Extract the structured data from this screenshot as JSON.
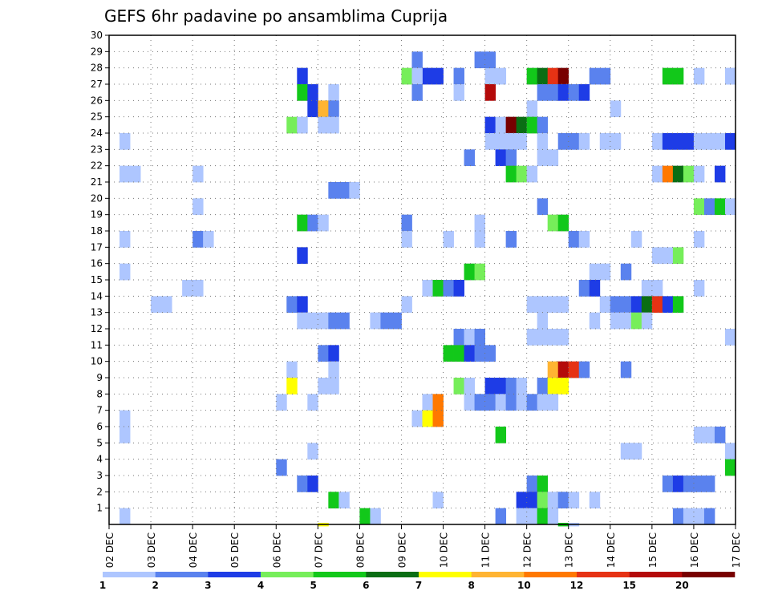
{
  "chart_data": {
    "type": "heatmap",
    "title": "GEFS 6hr padavine po ansamblima Cuprija",
    "x_tick_labels": [
      "02 DEC",
      "03 DEC",
      "04 DEC",
      "05 DEC",
      "06 DEC",
      "07 DEC",
      "08 DEC",
      "09 DEC",
      "10 DEC",
      "11 DEC",
      "12 DEC",
      "13 DEC",
      "14 DEC",
      "15 DEC",
      "16 DEC",
      "17 DEC"
    ],
    "y_tick_labels": [
      "1",
      "2",
      "3",
      "4",
      "5",
      "6",
      "7",
      "8",
      "9",
      "10",
      "11",
      "12",
      "13",
      "14",
      "15",
      "16",
      "17",
      "18",
      "19",
      "20",
      "21",
      "22",
      "23",
      "24",
      "25",
      "26",
      "27",
      "28",
      "29",
      "30"
    ],
    "grid": true,
    "x_range": [
      0,
      60
    ],
    "y_range": [
      0,
      30
    ],
    "legend_position": "bottom",
    "colorbar": {
      "labels": [
        "1",
        "2",
        "3",
        "4",
        "5",
        "6",
        "7",
        "8",
        "10",
        "12",
        "15",
        "20"
      ],
      "colors": [
        "#aec6ff",
        "#5a82ee",
        "#1e3ce6",
        "#76ee5a",
        "#12c81a",
        "#0a6e14",
        "#ffff00",
        "#ffb432",
        "#ff7800",
        "#e63214",
        "#b40a0a",
        "#780000"
      ]
    },
    "cells": [
      [
        30,
        27,
        3
      ],
      [
        31,
        27,
        3
      ],
      [
        33,
        27,
        2
      ],
      [
        36,
        27,
        1
      ],
      [
        37,
        27,
        1
      ],
      [
        59,
        27,
        1
      ],
      [
        29,
        28,
        2
      ],
      [
        35,
        28,
        2
      ],
      [
        36,
        28,
        2
      ],
      [
        18,
        27,
        3
      ],
      [
        28,
        27,
        4
      ],
      [
        29,
        27,
        1
      ],
      [
        40,
        27,
        5
      ],
      [
        41,
        27,
        6
      ],
      [
        42,
        27,
        10
      ],
      [
        43,
        27,
        12
      ],
      [
        46,
        27,
        2
      ],
      [
        47,
        27,
        2
      ],
      [
        53,
        27,
        5
      ],
      [
        54,
        27,
        5
      ],
      [
        56,
        27,
        1
      ],
      [
        59,
        27,
        1
      ],
      [
        18,
        26,
        5
      ],
      [
        19,
        26,
        3
      ],
      [
        21,
        26,
        1
      ],
      [
        29,
        26,
        2
      ],
      [
        33,
        26,
        1
      ],
      [
        36,
        26,
        11
      ],
      [
        41,
        26,
        2
      ],
      [
        42,
        26,
        2
      ],
      [
        43,
        26,
        3
      ],
      [
        44,
        26,
        2
      ],
      [
        45,
        26,
        3
      ],
      [
        19,
        25,
        3
      ],
      [
        20,
        25,
        8
      ],
      [
        21,
        25,
        2
      ],
      [
        40,
        25,
        1
      ],
      [
        48,
        25,
        1
      ],
      [
        17,
        24,
        4
      ],
      [
        18,
        24,
        1
      ],
      [
        20,
        24,
        1
      ],
      [
        21,
        24,
        1
      ],
      [
        36,
        24,
        3
      ],
      [
        37,
        24,
        1
      ],
      [
        38,
        24,
        12
      ],
      [
        39,
        24,
        6
      ],
      [
        40,
        24,
        5
      ],
      [
        41,
        24,
        2
      ],
      [
        1,
        23,
        1
      ],
      [
        36,
        23,
        1
      ],
      [
        37,
        23,
        1
      ],
      [
        38,
        23,
        1
      ],
      [
        39,
        23,
        1
      ],
      [
        41,
        23,
        1
      ],
      [
        43,
        23,
        2
      ],
      [
        44,
        23,
        2
      ],
      [
        45,
        23,
        1
      ],
      [
        47,
        23,
        1
      ],
      [
        48,
        23,
        1
      ],
      [
        52,
        23,
        1
      ],
      [
        53,
        23,
        3
      ],
      [
        54,
        23,
        3
      ],
      [
        55,
        23,
        3
      ],
      [
        56,
        23,
        1
      ],
      [
        57,
        23,
        1
      ],
      [
        58,
        23,
        1
      ],
      [
        59,
        23,
        3
      ],
      [
        34,
        22,
        2
      ],
      [
        37,
        22,
        3
      ],
      [
        38,
        22,
        2
      ],
      [
        41,
        22,
        1
      ],
      [
        42,
        22,
        1
      ],
      [
        1,
        21,
        1
      ],
      [
        2,
        21,
        1
      ],
      [
        8,
        21,
        1
      ],
      [
        38,
        21,
        5
      ],
      [
        39,
        21,
        4
      ],
      [
        40,
        21,
        1
      ],
      [
        52,
        21,
        1
      ],
      [
        53,
        21,
        9
      ],
      [
        54,
        21,
        6
      ],
      [
        55,
        21,
        4
      ],
      [
        56,
        21,
        1
      ],
      [
        58,
        21,
        3
      ],
      [
        21,
        20,
        2
      ],
      [
        22,
        20,
        2
      ],
      [
        23,
        20,
        1
      ],
      [
        8,
        19,
        1
      ],
      [
        41,
        19,
        2
      ],
      [
        56,
        19,
        4
      ],
      [
        57,
        19,
        2
      ],
      [
        58,
        19,
        5
      ],
      [
        59,
        19,
        1
      ],
      [
        18,
        18,
        5
      ],
      [
        19,
        18,
        2
      ],
      [
        20,
        18,
        1
      ],
      [
        28,
        18,
        2
      ],
      [
        35,
        18,
        1
      ],
      [
        42,
        18,
        4
      ],
      [
        43,
        18,
        5
      ],
      [
        1,
        17,
        1
      ],
      [
        8,
        17,
        2
      ],
      [
        9,
        17,
        1
      ],
      [
        28,
        17,
        1
      ],
      [
        32,
        17,
        1
      ],
      [
        35,
        17,
        1
      ],
      [
        38,
        17,
        2
      ],
      [
        44,
        17,
        2
      ],
      [
        45,
        17,
        1
      ],
      [
        50,
        17,
        1
      ],
      [
        56,
        17,
        1
      ],
      [
        18,
        16,
        3
      ],
      [
        52,
        16,
        1
      ],
      [
        53,
        16,
        1
      ],
      [
        54,
        16,
        4
      ],
      [
        1,
        15,
        1
      ],
      [
        34,
        15,
        5
      ],
      [
        35,
        15,
        4
      ],
      [
        46,
        15,
        1
      ],
      [
        47,
        15,
        1
      ],
      [
        49,
        15,
        2
      ],
      [
        7,
        14,
        1
      ],
      [
        8,
        14,
        1
      ],
      [
        30,
        14,
        1
      ],
      [
        31,
        14,
        5
      ],
      [
        32,
        14,
        2
      ],
      [
        33,
        14,
        3
      ],
      [
        45,
        14,
        2
      ],
      [
        46,
        14,
        3
      ],
      [
        51,
        14,
        1
      ],
      [
        52,
        14,
        1
      ],
      [
        56,
        14,
        1
      ],
      [
        4,
        13,
        1
      ],
      [
        5,
        13,
        1
      ],
      [
        17,
        13,
        2
      ],
      [
        18,
        13,
        3
      ],
      [
        28,
        13,
        1
      ],
      [
        40,
        13,
        1
      ],
      [
        41,
        13,
        1
      ],
      [
        42,
        13,
        1
      ],
      [
        43,
        13,
        1
      ],
      [
        47,
        13,
        1
      ],
      [
        48,
        13,
        2
      ],
      [
        49,
        13,
        2
      ],
      [
        50,
        13,
        3
      ],
      [
        51,
        13,
        6
      ],
      [
        52,
        13,
        10
      ],
      [
        53,
        13,
        3
      ],
      [
        54,
        13,
        5
      ],
      [
        18,
        12,
        1
      ],
      [
        19,
        12,
        1
      ],
      [
        20,
        12,
        1
      ],
      [
        21,
        12,
        2
      ],
      [
        22,
        12,
        2
      ],
      [
        25,
        12,
        1
      ],
      [
        26,
        12,
        2
      ],
      [
        27,
        12,
        2
      ],
      [
        41,
        12,
        1
      ],
      [
        46,
        12,
        1
      ],
      [
        48,
        12,
        1
      ],
      [
        49,
        12,
        1
      ],
      [
        50,
        12,
        4
      ],
      [
        51,
        12,
        1
      ],
      [
        33,
        11,
        2
      ],
      [
        34,
        11,
        1
      ],
      [
        35,
        11,
        2
      ],
      [
        40,
        11,
        1
      ],
      [
        41,
        11,
        1
      ],
      [
        42,
        11,
        1
      ],
      [
        43,
        11,
        1
      ],
      [
        59,
        11,
        1
      ],
      [
        20,
        10,
        2
      ],
      [
        21,
        10,
        3
      ],
      [
        32,
        10,
        5
      ],
      [
        33,
        10,
        5
      ],
      [
        34,
        10,
        3
      ],
      [
        35,
        10,
        2
      ],
      [
        36,
        10,
        2
      ],
      [
        17,
        9,
        1
      ],
      [
        21,
        9,
        1
      ],
      [
        42,
        9,
        8
      ],
      [
        43,
        9,
        11
      ],
      [
        44,
        9,
        10
      ],
      [
        45,
        9,
        2
      ],
      [
        49,
        9,
        2
      ],
      [
        17,
        8,
        7
      ],
      [
        20,
        8,
        1
      ],
      [
        21,
        8,
        1
      ],
      [
        33,
        8,
        4
      ],
      [
        34,
        8,
        1
      ],
      [
        36,
        8,
        3
      ],
      [
        37,
        8,
        3
      ],
      [
        38,
        8,
        2
      ],
      [
        39,
        8,
        1
      ],
      [
        41,
        8,
        2
      ],
      [
        42,
        8,
        7
      ],
      [
        43,
        8,
        7
      ],
      [
        16,
        7,
        1
      ],
      [
        19,
        7,
        1
      ],
      [
        30,
        7,
        1
      ],
      [
        31,
        7,
        9
      ],
      [
        34,
        7,
        1
      ],
      [
        35,
        7,
        2
      ],
      [
        36,
        7,
        2
      ],
      [
        37,
        7,
        1
      ],
      [
        38,
        7,
        2
      ],
      [
        39,
        7,
        1
      ],
      [
        40,
        7,
        2
      ],
      [
        41,
        7,
        1
      ],
      [
        42,
        7,
        1
      ],
      [
        1,
        6,
        1
      ],
      [
        29,
        6,
        1
      ],
      [
        30,
        6,
        7
      ],
      [
        31,
        6,
        9
      ],
      [
        1,
        5,
        1
      ],
      [
        56,
        5,
        1
      ],
      [
        57,
        5,
        1
      ],
      [
        58,
        5,
        2
      ],
      [
        37,
        5,
        5
      ],
      [
        19,
        4,
        1
      ],
      [
        49,
        4,
        1
      ],
      [
        50,
        4,
        1
      ],
      [
        59,
        4,
        1
      ],
      [
        16,
        3,
        2
      ],
      [
        59,
        3,
        5
      ],
      [
        18,
        2,
        2
      ],
      [
        19,
        2,
        3
      ],
      [
        40,
        2,
        2
      ],
      [
        41,
        2,
        5
      ],
      [
        53,
        2,
        2
      ],
      [
        54,
        2,
        3
      ],
      [
        55,
        2,
        2
      ],
      [
        56,
        2,
        2
      ],
      [
        57,
        2,
        2
      ],
      [
        21,
        1,
        5
      ],
      [
        22,
        1,
        1
      ],
      [
        31,
        1,
        1
      ],
      [
        39,
        1,
        3
      ],
      [
        40,
        1,
        3
      ],
      [
        41,
        1,
        4
      ],
      [
        42,
        1,
        1
      ],
      [
        43,
        1,
        2
      ],
      [
        44,
        1,
        1
      ],
      [
        46,
        1,
        1
      ],
      [
        1,
        0,
        1
      ],
      [
        24,
        0,
        5
      ],
      [
        25,
        0,
        1
      ],
      [
        37,
        0,
        2
      ],
      [
        39,
        0,
        1
      ],
      [
        40,
        0,
        1
      ],
      [
        41,
        0,
        5
      ],
      [
        42,
        0,
        1
      ],
      [
        54,
        0,
        2
      ],
      [
        55,
        0,
        1
      ],
      [
        56,
        0,
        1
      ],
      [
        57,
        0,
        2
      ],
      [
        20,
        -1,
        7
      ],
      [
        43,
        -1,
        5
      ],
      [
        44,
        -1,
        1
      ]
    ]
  }
}
